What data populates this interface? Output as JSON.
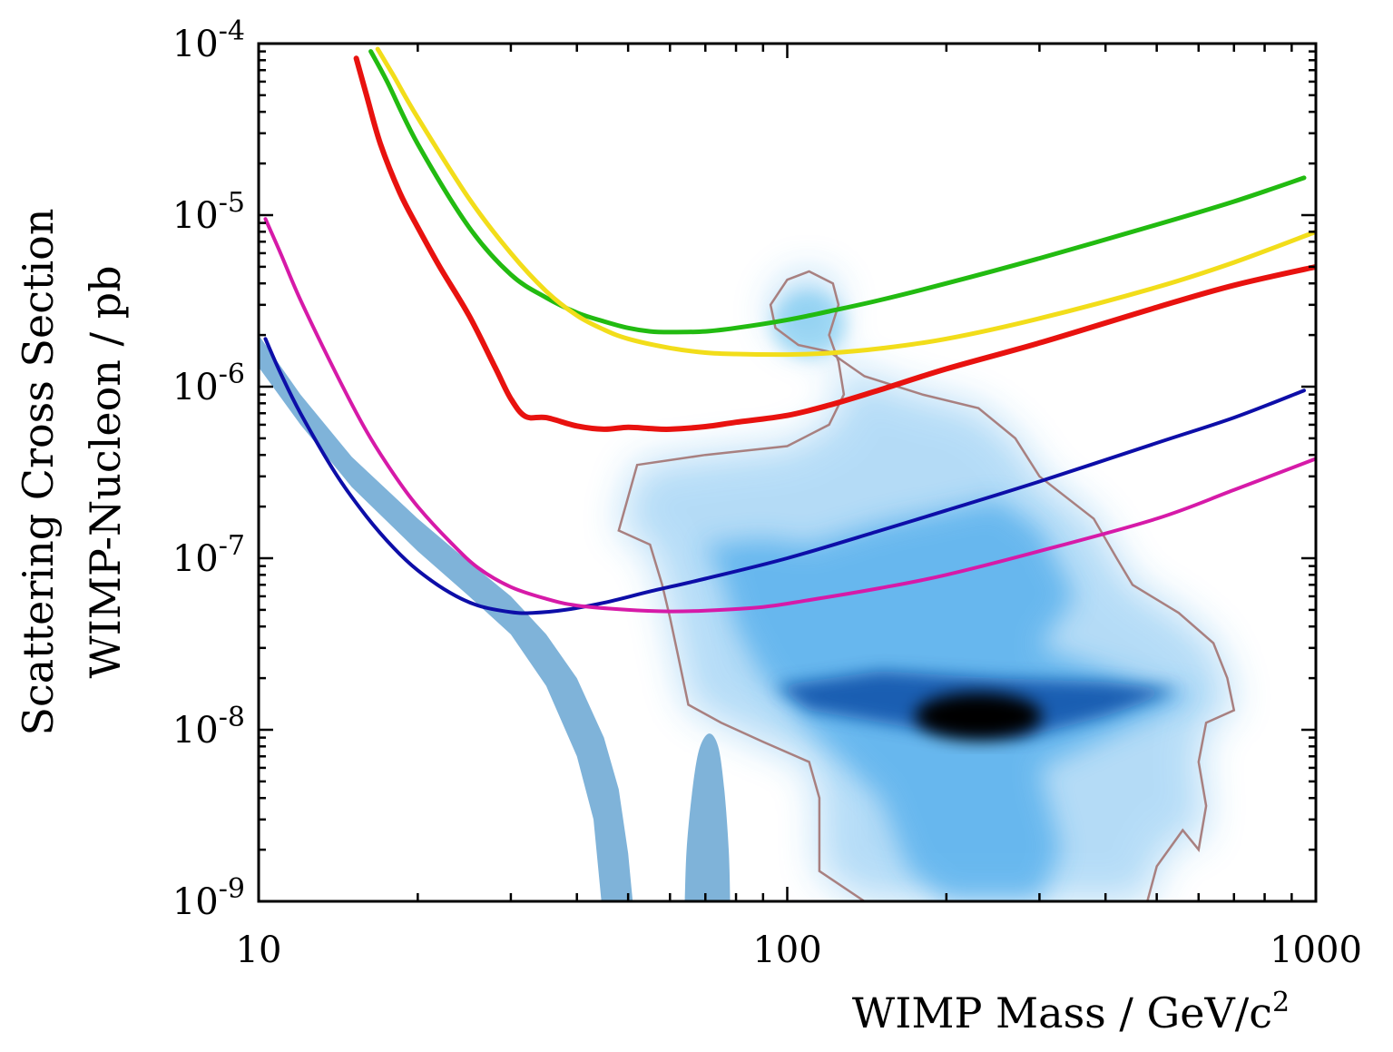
{
  "chart_data": {
    "type": "line",
    "xscale": "log",
    "yscale": "log",
    "xlim": [
      10,
      1000
    ],
    "ylim": [
      1e-09,
      0.0001
    ],
    "xlabel": {
      "text": "WIMP Mass / GeV/c",
      "superscript": "2"
    },
    "ylabel": {
      "line1": "Scattering Cross Section",
      "line2": "WIMP-Nucleon / pb"
    },
    "x_ticks": [
      {
        "value": 10,
        "label": "10"
      },
      {
        "value": 100,
        "label": "100"
      },
      {
        "value": 1000,
        "label": "1000"
      }
    ],
    "y_ticks": [
      {
        "value": 0.0001,
        "base": "10",
        "exponent": "-4"
      },
      {
        "value": 1e-05,
        "base": "10",
        "exponent": "-5"
      },
      {
        "value": 1e-06,
        "base": "10",
        "exponent": "-6"
      },
      {
        "value": 1e-07,
        "base": "10",
        "exponent": "-7"
      },
      {
        "value": 1e-08,
        "base": "10",
        "exponent": "-8"
      },
      {
        "value": 1e-09,
        "base": "10",
        "exponent": "-9"
      }
    ],
    "grid": false,
    "series": [
      {
        "name": "green-limit",
        "color": "#22bb11",
        "width": 5,
        "points": [
          [
            16.3,
            9e-05
          ],
          [
            17.5,
            6e-05
          ],
          [
            20,
            2.6e-05
          ],
          [
            25,
            8.5e-06
          ],
          [
            30,
            4.5e-06
          ],
          [
            35,
            3.3e-06
          ],
          [
            40,
            2.7e-06
          ],
          [
            45,
            2.4e-06
          ],
          [
            50,
            2.2e-06
          ],
          [
            55,
            2.1e-06
          ],
          [
            60,
            2.08e-06
          ],
          [
            70,
            2.1e-06
          ],
          [
            80,
            2.2e-06
          ],
          [
            100,
            2.45e-06
          ],
          [
            120,
            2.75e-06
          ],
          [
            150,
            3.2e-06
          ],
          [
            200,
            4e-06
          ],
          [
            300,
            5.6e-06
          ],
          [
            500,
            8.8e-06
          ],
          [
            700,
            1.2e-05
          ],
          [
            950,
            1.65e-05
          ]
        ]
      },
      {
        "name": "yellow-limit",
        "color": "#f2dd1a",
        "width": 5,
        "points": [
          [
            16.8,
            9.3e-05
          ],
          [
            18,
            6.5e-05
          ],
          [
            20,
            3.7e-05
          ],
          [
            25,
            1.25e-05
          ],
          [
            30,
            6e-06
          ],
          [
            35,
            3.6e-06
          ],
          [
            40,
            2.6e-06
          ],
          [
            45,
            2.15e-06
          ],
          [
            50,
            1.9e-06
          ],
          [
            60,
            1.68e-06
          ],
          [
            70,
            1.58e-06
          ],
          [
            80,
            1.55e-06
          ],
          [
            100,
            1.54e-06
          ],
          [
            120,
            1.57e-06
          ],
          [
            150,
            1.67e-06
          ],
          [
            200,
            1.9e-06
          ],
          [
            300,
            2.5e-06
          ],
          [
            500,
            3.8e-06
          ],
          [
            700,
            5.3e-06
          ],
          [
            1000,
            8e-06
          ]
        ]
      },
      {
        "name": "red-limit",
        "color": "#e8120f",
        "width": 6,
        "points": [
          [
            15.3,
            8.2e-05
          ],
          [
            16,
            5e-05
          ],
          [
            17,
            2.6e-05
          ],
          [
            18.5,
            1.35e-05
          ],
          [
            20,
            8.5e-06
          ],
          [
            22,
            5e-06
          ],
          [
            25,
            2.6e-06
          ],
          [
            28,
            1.3e-06
          ],
          [
            30,
            8.5e-07
          ],
          [
            32,
            6.7e-07
          ],
          [
            35,
            6.6e-07
          ],
          [
            40,
            5.9e-07
          ],
          [
            45,
            5.65e-07
          ],
          [
            50,
            5.8e-07
          ],
          [
            55,
            5.7e-07
          ],
          [
            60,
            5.65e-07
          ],
          [
            70,
            5.85e-07
          ],
          [
            80,
            6.2e-07
          ],
          [
            100,
            6.8e-07
          ],
          [
            120,
            7.8e-07
          ],
          [
            150,
            9.6e-07
          ],
          [
            200,
            1.27e-06
          ],
          [
            300,
            1.8e-06
          ],
          [
            500,
            2.9e-06
          ],
          [
            700,
            3.9e-06
          ],
          [
            1000,
            5e-06
          ]
        ]
      },
      {
        "name": "blue-limit",
        "color": "#0d0ea8",
        "width": 4,
        "points": [
          [
            10.3,
            1.9e-06
          ],
          [
            11,
            1.2e-06
          ],
          [
            12,
            7e-07
          ],
          [
            14,
            3.1e-07
          ],
          [
            16,
            1.75e-07
          ],
          [
            18,
            1.15e-07
          ],
          [
            20,
            8.5e-08
          ],
          [
            23,
            6.3e-08
          ],
          [
            26,
            5.3e-08
          ],
          [
            30,
            4.85e-08
          ],
          [
            33,
            4.8e-08
          ],
          [
            38,
            5e-08
          ],
          [
            45,
            5.5e-08
          ],
          [
            55,
            6.4e-08
          ],
          [
            70,
            7.6e-08
          ],
          [
            100,
            1e-07
          ],
          [
            150,
            1.45e-07
          ],
          [
            200,
            1.9e-07
          ],
          [
            300,
            2.8e-07
          ],
          [
            500,
            4.7e-07
          ],
          [
            700,
            6.6e-07
          ],
          [
            950,
            9.5e-07
          ]
        ]
      },
      {
        "name": "magenta-limit",
        "color": "#d61aa8",
        "width": 4,
        "points": [
          [
            10.3,
            9.5e-06
          ],
          [
            11,
            6e-06
          ],
          [
            12,
            3.2e-06
          ],
          [
            14,
            1.2e-06
          ],
          [
            16,
            5.5e-07
          ],
          [
            18,
            3.1e-07
          ],
          [
            20,
            2e-07
          ],
          [
            23,
            1.25e-07
          ],
          [
            26,
            8.8e-08
          ],
          [
            30,
            6.8e-08
          ],
          [
            35,
            5.8e-08
          ],
          [
            40,
            5.3e-08
          ],
          [
            50,
            5e-08
          ],
          [
            60,
            4.9e-08
          ],
          [
            70,
            4.95e-08
          ],
          [
            90,
            5.2e-08
          ],
          [
            110,
            5.7e-08
          ],
          [
            150,
            6.7e-08
          ],
          [
            200,
            8e-08
          ],
          [
            300,
            1.1e-07
          ],
          [
            500,
            1.7e-07
          ],
          [
            700,
            2.5e-07
          ],
          [
            1000,
            3.8e-07
          ]
        ]
      }
    ],
    "regions": [
      {
        "name": "light-blue-band",
        "color": "#7fb3d9",
        "upper": [
          [
            10,
            2e-06
          ],
          [
            12,
            9e-07
          ],
          [
            15,
            3.9e-07
          ],
          [
            20,
            1.7e-07
          ],
          [
            25,
            9.5e-08
          ],
          [
            30,
            6e-08
          ],
          [
            35,
            3.6e-08
          ],
          [
            40,
            2e-08
          ],
          [
            45,
            9e-09
          ],
          [
            48,
            4.5e-09
          ],
          [
            50,
            1.9e-09
          ],
          [
            51,
            1e-09
          ]
        ],
        "lower": [
          [
            10,
            1.3e-06
          ],
          [
            12,
            6e-07
          ],
          [
            15,
            2.6e-07
          ],
          [
            20,
            1.1e-07
          ],
          [
            25,
            6e-08
          ],
          [
            30,
            3.6e-08
          ],
          [
            35,
            1.8e-08
          ],
          [
            40,
            7e-09
          ],
          [
            43,
            3e-09
          ],
          [
            44.5,
            1e-09
          ]
        ]
      },
      {
        "name": "light-blue-spike",
        "color": "#7fb3d9",
        "outline": [
          [
            64,
            1e-09
          ],
          [
            64.5,
            2e-09
          ],
          [
            66,
            4.2e-09
          ],
          [
            68,
            7.5e-09
          ],
          [
            71,
            9.5e-09
          ],
          [
            74,
            8e-09
          ],
          [
            76,
            4.5e-09
          ],
          [
            77.5,
            2e-09
          ],
          [
            78,
            1e-09
          ]
        ]
      },
      {
        "name": "scan-outline",
        "color": "#a88080",
        "outline": [
          [
            48,
            1.45e-07
          ],
          [
            55,
            1.2e-07
          ],
          [
            58,
            7e-08
          ],
          [
            60,
            4.5e-08
          ],
          [
            62,
            2.8e-08
          ],
          [
            65,
            1.4e-08
          ],
          [
            75,
            1.1e-08
          ],
          [
            90,
            8.5e-09
          ],
          [
            110,
            6.5e-09
          ],
          [
            115,
            4e-09
          ],
          [
            115,
            1.5e-09
          ],
          [
            140,
            1e-09
          ],
          [
            480,
            1e-09
          ],
          [
            500,
            1.6e-09
          ],
          [
            560,
            2.6e-09
          ],
          [
            600,
            2e-09
          ],
          [
            620,
            3.6e-09
          ],
          [
            600,
            6.5e-09
          ],
          [
            620,
            1.1e-08
          ],
          [
            700,
            1.3e-08
          ],
          [
            680,
            2e-08
          ],
          [
            640,
            3.2e-08
          ],
          [
            550,
            4.8e-08
          ],
          [
            450,
            7e-08
          ],
          [
            420,
            1e-07
          ],
          [
            380,
            1.7e-07
          ],
          [
            300,
            3e-07
          ],
          [
            270,
            5e-07
          ],
          [
            230,
            7.5e-07
          ],
          [
            180,
            9e-07
          ],
          [
            140,
            1.15e-06
          ],
          [
            120,
            1.6e-06
          ],
          [
            105,
            1.75e-06
          ],
          [
            95,
            2.2e-06
          ],
          [
            93,
            3e-06
          ],
          [
            100,
            4.2e-06
          ],
          [
            110,
            4.7e-06
          ],
          [
            122,
            4e-06
          ],
          [
            125,
            3e-06
          ],
          [
            120,
            2e-06
          ],
          [
            125,
            1.4e-06
          ],
          [
            128,
            9e-07
          ],
          [
            120,
            6e-07
          ],
          [
            100,
            4.5e-07
          ],
          [
            70,
            4e-07
          ],
          [
            52,
            3.5e-07
          ]
        ]
      },
      {
        "name": "scan-density",
        "color": "#2a9be8",
        "peak_color": "#000000",
        "peak": [
          230,
          1.2e-08
        ]
      }
    ]
  }
}
